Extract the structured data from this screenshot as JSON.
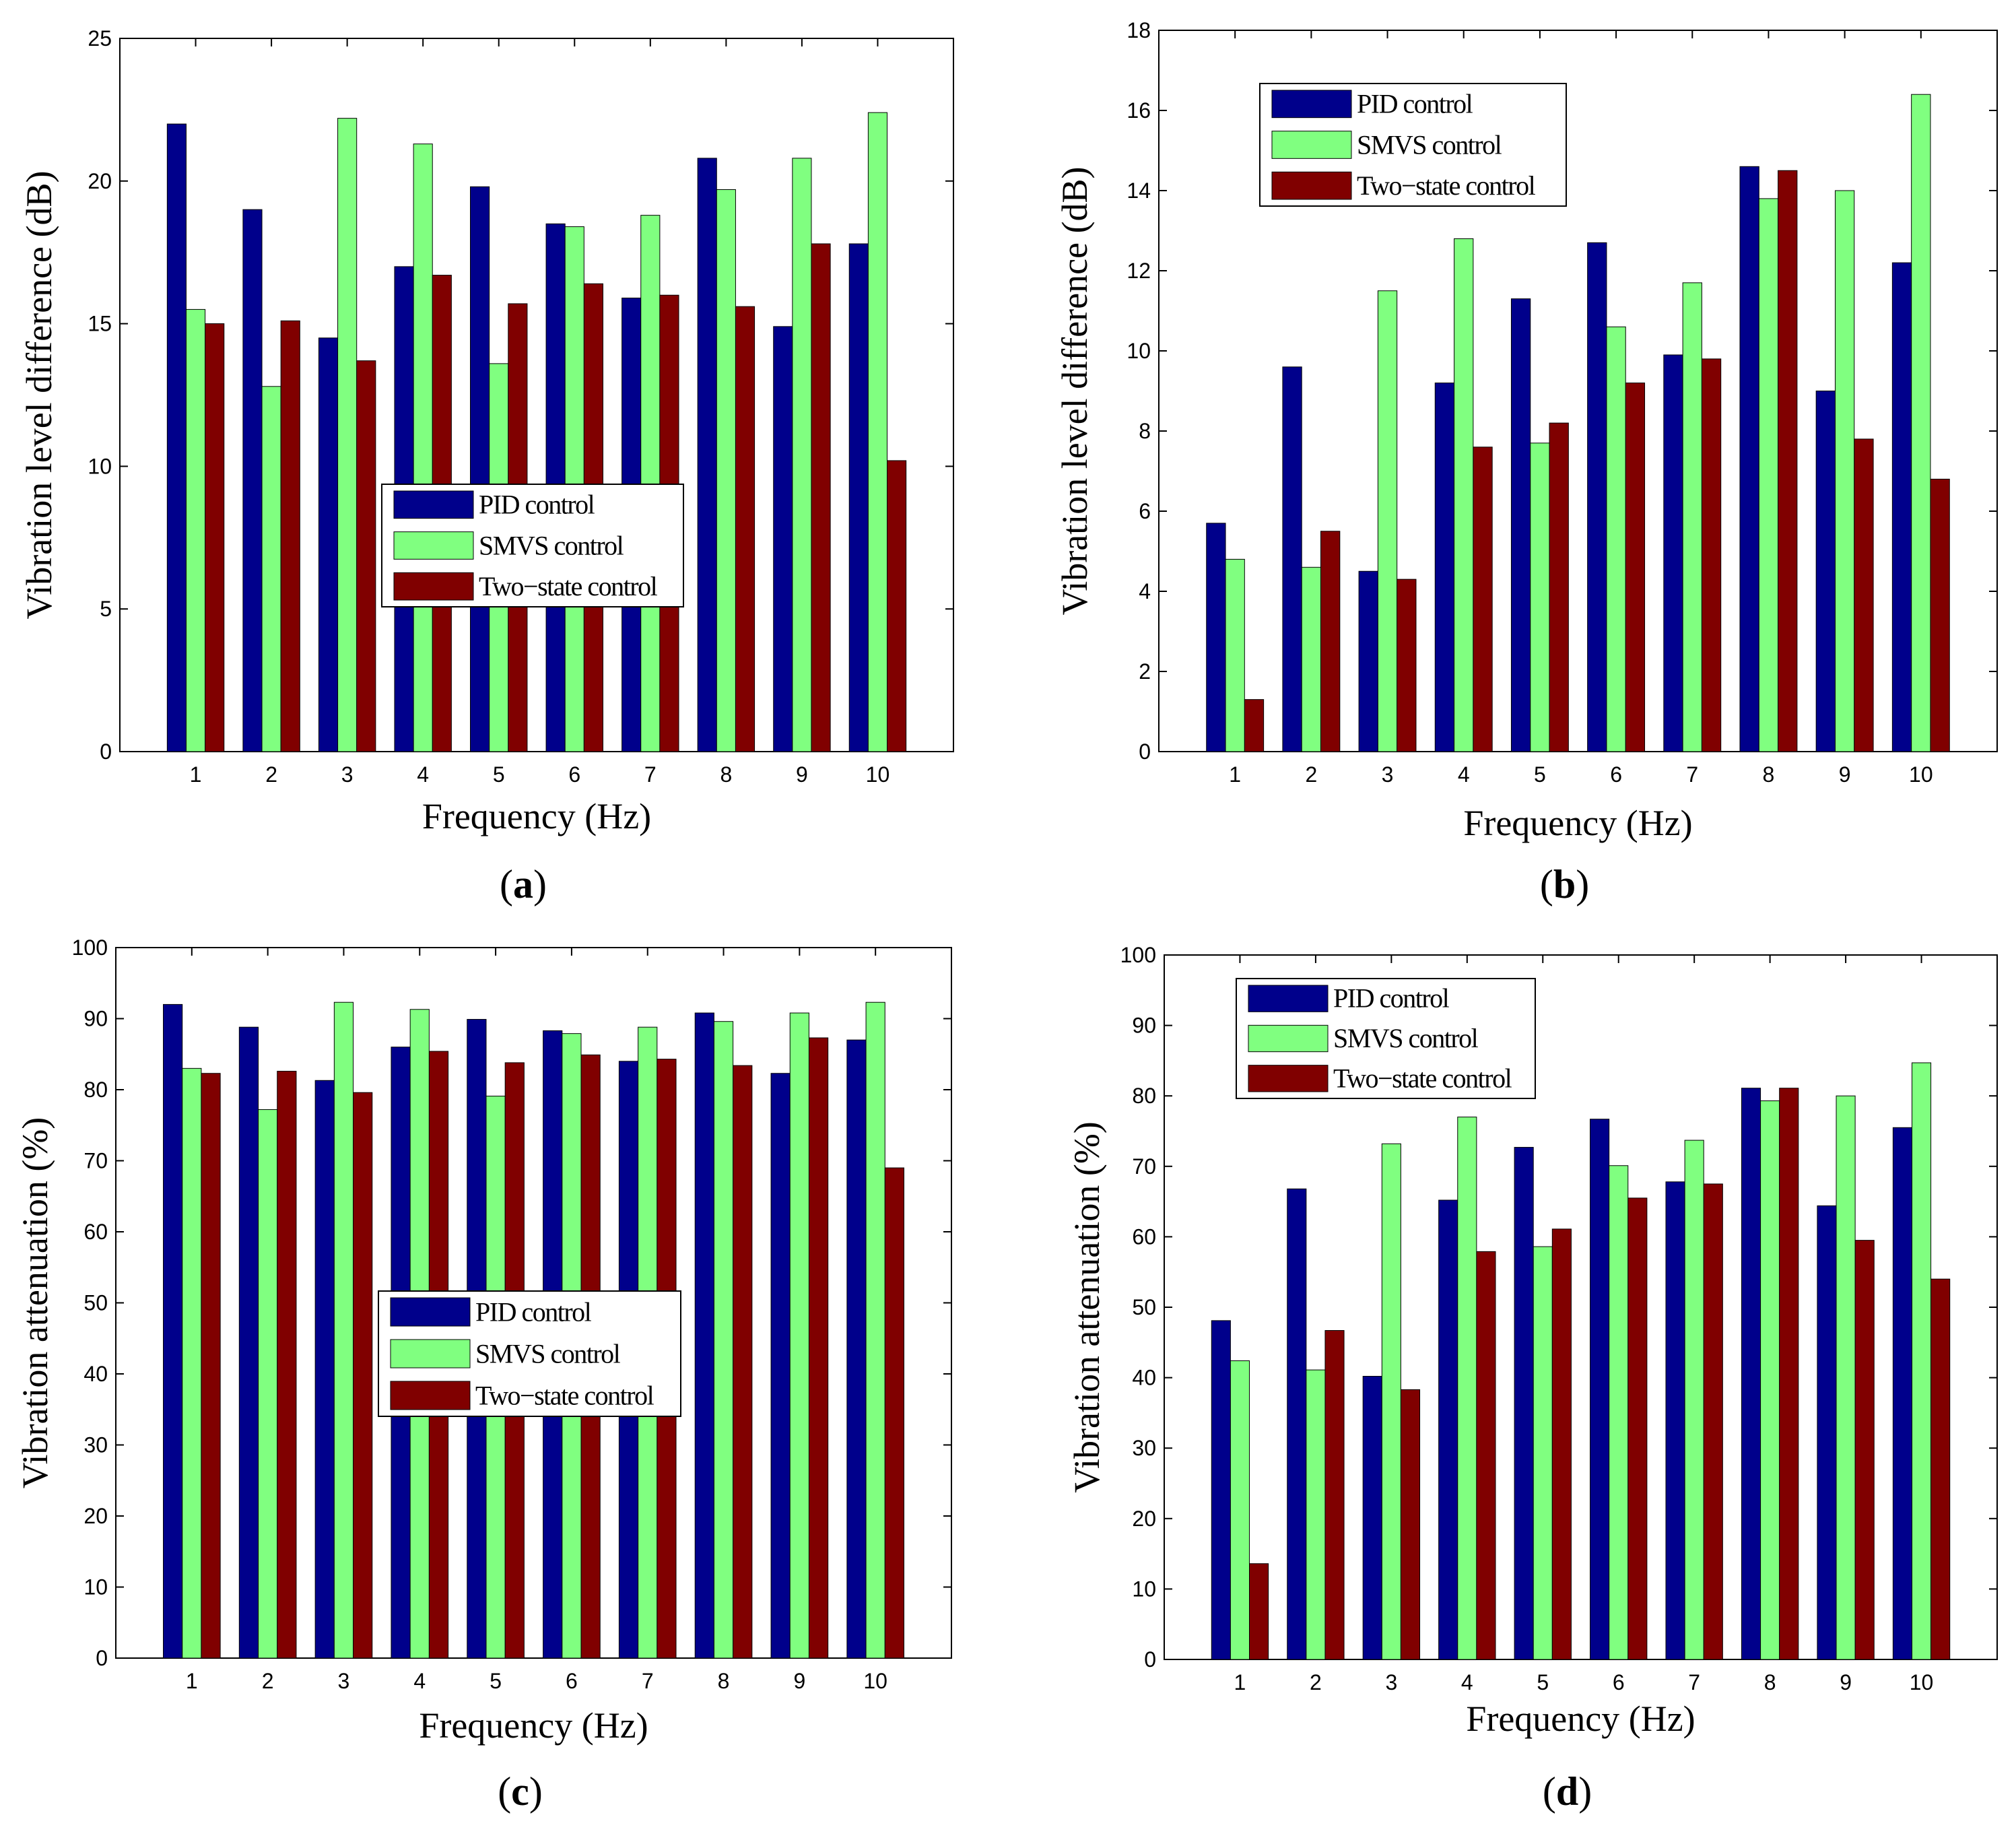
{
  "chart_data": [
    {
      "id": "a",
      "type": "bar",
      "panel_label": "a",
      "xlabel": "Frequency (Hz)",
      "ylabel": "Vibration level difference (dB)",
      "ylim": [
        0,
        25
      ],
      "yticks": [
        0,
        5,
        10,
        15,
        20,
        25
      ],
      "categories": [
        "1",
        "2",
        "3",
        "4",
        "5",
        "6",
        "7",
        "8",
        "9",
        "10"
      ],
      "legend_position": "center",
      "series": [
        {
          "name": "PID control",
          "color": "#00008b",
          "values": [
            22.0,
            19.0,
            14.5,
            17.0,
            19.8,
            18.5,
            15.9,
            20.8,
            14.9,
            17.8
          ]
        },
        {
          "name": "SMVS control",
          "color": "#80ff80",
          "values": [
            15.5,
            12.8,
            22.2,
            21.3,
            13.6,
            18.4,
            18.8,
            19.7,
            20.8,
            22.4
          ]
        },
        {
          "name": "Two−state control",
          "color": "#800000",
          "values": [
            15.0,
            15.1,
            13.7,
            16.7,
            15.7,
            16.4,
            16.0,
            15.6,
            17.8,
            10.2
          ]
        }
      ]
    },
    {
      "id": "b",
      "type": "bar",
      "panel_label": "b",
      "xlabel": "Frequency (Hz)",
      "ylabel": "Vibration level difference (dB)",
      "ylim": [
        0,
        18
      ],
      "yticks": [
        0,
        2,
        4,
        6,
        8,
        10,
        12,
        14,
        16,
        18
      ],
      "categories": [
        "1",
        "2",
        "3",
        "4",
        "5",
        "6",
        "7",
        "8",
        "9",
        "10"
      ],
      "legend_position": "top-left",
      "series": [
        {
          "name": "PID control",
          "color": "#00008b",
          "values": [
            5.7,
            9.6,
            4.5,
            9.2,
            11.3,
            12.7,
            9.9,
            14.6,
            9.0,
            12.2
          ]
        },
        {
          "name": "SMVS control",
          "color": "#80ff80",
          "values": [
            4.8,
            4.6,
            11.5,
            12.8,
            7.7,
            10.6,
            11.7,
            13.8,
            14.0,
            16.4
          ]
        },
        {
          "name": "Two−state control",
          "color": "#800000",
          "values": [
            1.3,
            5.5,
            4.3,
            7.6,
            8.2,
            9.2,
            9.8,
            14.5,
            7.8,
            6.8
          ]
        }
      ]
    },
    {
      "id": "c",
      "type": "bar",
      "panel_label": "c",
      "xlabel": "Frequency (Hz)",
      "ylabel": "Vibration attenuation (%)",
      "ylim": [
        0,
        100
      ],
      "yticks": [
        0,
        10,
        20,
        30,
        40,
        50,
        60,
        70,
        80,
        90,
        100
      ],
      "categories": [
        "1",
        "2",
        "3",
        "4",
        "5",
        "6",
        "7",
        "8",
        "9",
        "10"
      ],
      "legend_position": "center",
      "series": [
        {
          "name": "PID control",
          "color": "#00008b",
          "values": [
            92.0,
            88.8,
            81.3,
            86.0,
            89.9,
            88.3,
            84.0,
            90.8,
            82.3,
            87.0
          ]
        },
        {
          "name": "SMVS control",
          "color": "#80ff80",
          "values": [
            83.0,
            77.2,
            92.3,
            91.3,
            79.1,
            87.9,
            88.8,
            89.6,
            90.8,
            92.3
          ]
        },
        {
          "name": "Two−state control",
          "color": "#800000",
          "values": [
            82.3,
            82.6,
            79.6,
            85.4,
            83.8,
            84.9,
            84.3,
            83.4,
            87.3,
            69.0
          ]
        }
      ]
    },
    {
      "id": "d",
      "type": "bar",
      "panel_label": "d",
      "xlabel": "Frequency (Hz)",
      "ylabel": "Vibration attenuation (%)",
      "ylim": [
        0,
        100
      ],
      "yticks": [
        0,
        10,
        20,
        30,
        40,
        50,
        60,
        70,
        80,
        90,
        100
      ],
      "categories": [
        "1",
        "2",
        "3",
        "4",
        "5",
        "6",
        "7",
        "8",
        "9",
        "10"
      ],
      "legend_position": "top-left",
      "series": [
        {
          "name": "PID control",
          "color": "#00008b",
          "values": [
            48.1,
            66.8,
            40.2,
            65.2,
            72.7,
            76.7,
            67.8,
            81.1,
            64.4,
            75.5
          ]
        },
        {
          "name": "SMVS control",
          "color": "#80ff80",
          "values": [
            42.4,
            41.1,
            73.2,
            77.0,
            58.6,
            70.1,
            73.7,
            79.3,
            80.0,
            84.7
          ]
        },
        {
          "name": "Two−state control",
          "color": "#800000",
          "values": [
            13.6,
            46.7,
            38.3,
            57.9,
            61.1,
            65.5,
            67.5,
            81.1,
            59.5,
            54.0
          ]
        }
      ]
    }
  ]
}
